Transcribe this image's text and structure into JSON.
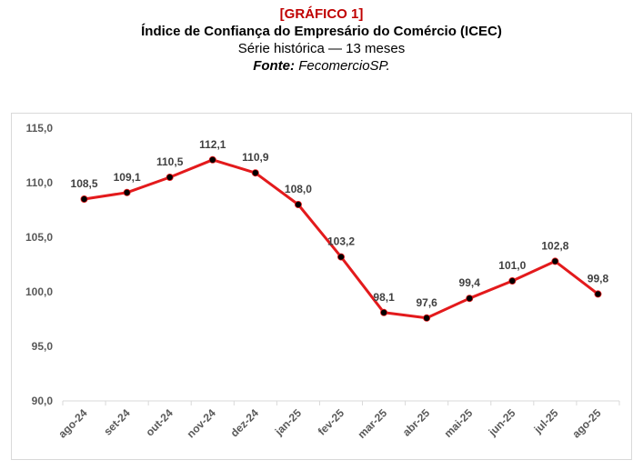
{
  "header": {
    "label": "[GRÁFICO 1]",
    "title": "Índice de Confiança do Empresário do Comércio (ICEC)",
    "subtitle": "Série histórica — 13 meses",
    "source_prefix": "Fonte:",
    "source_name": "FecomercioSP."
  },
  "colors": {
    "line": "#e31a1c",
    "marker": "#000000",
    "label_red": "#c00000",
    "grid": "#d9d9d9"
  },
  "chart_data": {
    "type": "line",
    "title": "Índice de Confiança do Empresário do Comércio (ICEC)",
    "xlabel": "",
    "ylabel": "",
    "categories": [
      "ago-24",
      "set-24",
      "out-24",
      "nov-24",
      "dez-24",
      "jan-25",
      "fev-25",
      "mar-25",
      "abr-25",
      "mai-25",
      "jun-25",
      "jul-25",
      "ago-25"
    ],
    "series": [
      {
        "name": "ICEC",
        "values": [
          108.5,
          109.1,
          110.5,
          112.1,
          110.9,
          108.0,
          103.2,
          98.1,
          97.6,
          99.4,
          101.0,
          102.8,
          99.8
        ],
        "value_labels": [
          "108,5",
          "109,1",
          "110,5",
          "112,1",
          "110,9",
          "108,0",
          "103,2",
          "98,1",
          "97,6",
          "99,4",
          "101,0",
          "102,8",
          "99,8"
        ]
      }
    ],
    "ylim": [
      90,
      115
    ],
    "yticks": [
      90,
      95,
      100,
      105,
      110,
      115
    ],
    "ytick_labels": [
      "90,0",
      "95,0",
      "100,0",
      "105,0",
      "110,0",
      "115,0"
    ],
    "grid": false,
    "legend": "none"
  }
}
